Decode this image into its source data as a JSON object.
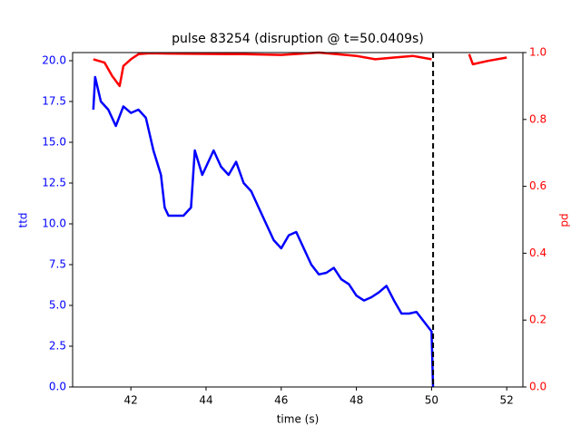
{
  "chart_data": {
    "type": "line",
    "title": "pulse 83254 (disruption @ t=50.0409s)",
    "xlabel": "time (s)",
    "ylabel": "ttd",
    "y2label": "pd",
    "xlim": [
      40.45,
      52.43
    ],
    "ylim": [
      0,
      20.5
    ],
    "y2lim": [
      0,
      1
    ],
    "xticks": [
      42,
      44,
      46,
      48,
      50,
      52
    ],
    "yticks": [
      {
        "value": 0,
        "label": "0.0"
      },
      {
        "value": 2.5,
        "label": "2.5"
      },
      {
        "value": 5,
        "label": "5.0"
      },
      {
        "value": 7.5,
        "label": "7.5"
      },
      {
        "value": 10,
        "label": "10.0"
      },
      {
        "value": 12.5,
        "label": "12.5"
      },
      {
        "value": 15,
        "label": "15.0"
      },
      {
        "value": 17.5,
        "label": "17.5"
      },
      {
        "value": 20,
        "label": "20.0"
      }
    ],
    "y2ticks": [
      {
        "value": 0,
        "label": "0.0"
      },
      {
        "value": 0.2,
        "label": "0.2"
      },
      {
        "value": 0.4,
        "label": "0.4"
      },
      {
        "value": 0.6,
        "label": "0.6"
      },
      {
        "value": 0.8,
        "label": "0.8"
      },
      {
        "value": 1,
        "label": "1.0"
      }
    ],
    "vline": 50.0409,
    "series": [
      {
        "color": "#0000ff",
        "axis": "y",
        "x": [
          41.0,
          41.05,
          41.2,
          41.4,
          41.6,
          41.8,
          42.0,
          42.2,
          42.4,
          42.6,
          42.8,
          42.9,
          43.0,
          43.2,
          43.4,
          43.6,
          43.7,
          43.9,
          44.0,
          44.2,
          44.4,
          44.6,
          44.8,
          45.0,
          45.2,
          45.4,
          45.6,
          45.8,
          46.0,
          46.2,
          46.4,
          46.6,
          46.8,
          47.0,
          47.2,
          47.4,
          47.6,
          47.8,
          48.0,
          48.2,
          48.4,
          48.6,
          48.8,
          49.0,
          49.2,
          49.4,
          49.6,
          49.8,
          50.0,
          50.04
        ],
        "values": [
          17.0,
          19.0,
          17.5,
          17.0,
          16.0,
          17.2,
          16.8,
          17.0,
          16.5,
          14.5,
          13.0,
          11.0,
          10.5,
          10.5,
          10.5,
          11.0,
          14.5,
          13.0,
          13.5,
          14.5,
          13.5,
          13.0,
          13.8,
          12.5,
          12.0,
          11.0,
          10.0,
          9.0,
          8.5,
          9.3,
          9.5,
          8.5,
          7.5,
          6.9,
          7.0,
          7.3,
          6.6,
          6.3,
          5.6,
          5.3,
          5.5,
          5.8,
          6.2,
          5.3,
          4.5,
          4.5,
          4.6,
          4.0,
          3.4,
          0.0
        ]
      },
      {
        "color": "#ff0000",
        "axis": "y2",
        "x": [
          41.0,
          41.3,
          41.5,
          41.7,
          41.8,
          42.0,
          42.2,
          42.5,
          43.0,
          44.0,
          45.0,
          46.0,
          47.0,
          48.0,
          48.5,
          49.0,
          49.5,
          50.0,
          50.5,
          51.0,
          51.1,
          51.5,
          52.0
        ],
        "values": [
          0.98,
          0.97,
          0.93,
          0.9,
          0.96,
          0.98,
          0.995,
          0.998,
          0.997,
          0.996,
          0.995,
          0.993,
          1.0,
          0.99,
          0.98,
          0.985,
          0.99,
          0.98,
          null,
          0.995,
          0.965,
          0.975,
          0.985
        ]
      }
    ]
  }
}
